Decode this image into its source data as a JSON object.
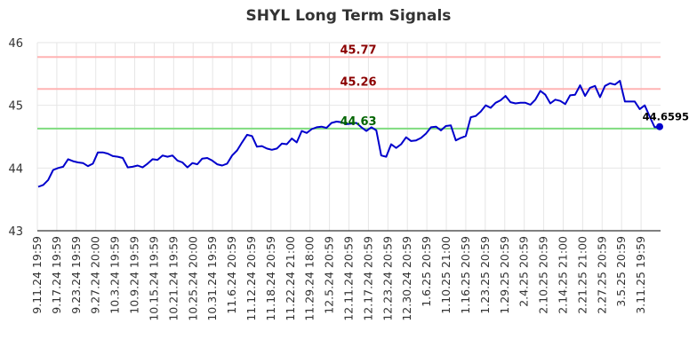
{
  "chart_data": {
    "type": "line",
    "title": "SHYL Long Term Signals",
    "xlabel": "",
    "ylabel": "",
    "ylim": [
      43,
      46
    ],
    "grid": true,
    "yticks": [
      "43",
      "44",
      "45",
      "46"
    ],
    "xticks": [
      "9.11.24 19:59",
      "9.17.24 19:59",
      "9.23.24 19:59",
      "9.27.24 20:00",
      "10.3.24 19:59",
      "10.9.24 19:59",
      "10.15.24 19:59",
      "10.21.24 19:59",
      "10.25.24 20:00",
      "10.31.24 19:59",
      "11.6.24 20:59",
      "11.12.24 20:59",
      "11.18.24 20:59",
      "11.22.24 21:00",
      "11.29.24 18:00",
      "12.5.24 20:59",
      "12.11.24 20:59",
      "12.17.24 20:59",
      "12.23.24 20:59",
      "12.30.24 20:59",
      "1.6.25 20:59",
      "1.10.25 21:00",
      "1.16.25 20:59",
      "1.23.25 20:59",
      "1.29.25 20:59",
      "2.4.25 20:59",
      "2.10.25 20:59",
      "2.14.25 21:00",
      "2.21.25 21:00",
      "2.27.25 20:59",
      "3.5.25 20:59",
      "3.11.25 19:59"
    ],
    "series": [
      {
        "color": "#0000cc",
        "values": [
          43.7,
          43.73,
          43.81,
          43.97,
          44.0,
          44.02,
          44.14,
          44.11,
          44.09,
          44.08,
          44.03,
          44.07,
          44.25,
          44.25,
          44.23,
          44.19,
          44.18,
          44.16,
          44.01,
          44.02,
          44.04,
          44.01,
          44.07,
          44.14,
          44.13,
          44.2,
          44.18,
          44.2,
          44.12,
          44.09,
          44.01,
          44.08,
          44.06,
          44.15,
          44.16,
          44.12,
          44.06,
          44.04,
          44.07,
          44.2,
          44.28,
          44.41,
          44.53,
          44.51,
          44.34,
          44.35,
          44.31,
          44.29,
          44.31,
          44.39,
          44.38,
          44.47,
          44.41,
          44.59,
          44.56,
          44.62,
          44.65,
          44.66,
          44.64,
          44.72,
          44.74,
          44.73,
          44.7,
          44.71,
          44.72,
          44.65,
          44.59,
          44.65,
          44.6,
          44.2,
          44.18,
          44.38,
          44.32,
          44.38,
          44.49,
          44.43,
          44.44,
          44.48,
          44.55,
          44.65,
          44.66,
          44.6,
          44.67,
          44.68,
          44.44,
          44.48,
          44.51,
          44.81,
          44.83,
          44.9,
          45.0,
          44.96,
          45.04,
          45.08,
          45.15,
          45.05,
          45.03,
          45.04,
          45.04,
          45.01,
          45.09,
          45.23,
          45.17,
          45.03,
          45.09,
          45.07,
          45.02,
          45.16,
          45.17,
          45.32,
          45.15,
          45.28,
          45.31,
          45.13,
          45.31,
          45.35,
          45.33,
          45.39,
          45.06,
          45.06,
          45.06,
          44.94,
          45.0,
          44.82,
          44.65,
          44.6595
        ]
      }
    ],
    "reference_lines": [
      {
        "value": 45.77,
        "label": "45.77",
        "color": "#ffb3b3",
        "label_color": "#8b0000"
      },
      {
        "value": 45.26,
        "label": "45.26",
        "color": "#ffb3b3",
        "label_color": "#8b0000"
      },
      {
        "value": 44.63,
        "label": "44.63",
        "color": "#7fdc7f",
        "label_color": "#006400"
      }
    ],
    "last_value_label": "44.6595"
  }
}
